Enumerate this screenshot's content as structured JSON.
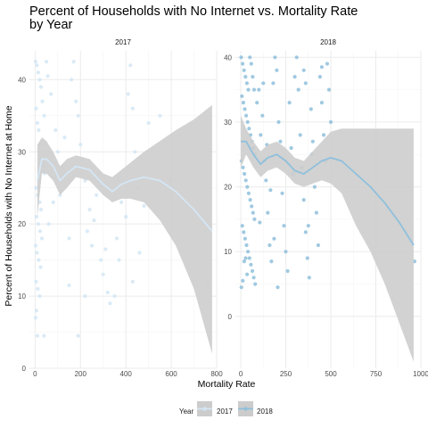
{
  "chart_data": {
    "type": "scatter",
    "title_lines": [
      "Percent of Households with No Internet vs. Mortality Rate",
      "by Year"
    ],
    "xlabel": "Mortality Rate",
    "ylabel": "Percent of Households with No Internet at Home",
    "legend": {
      "title": "Year",
      "entries": [
        "2017",
        "2018"
      ],
      "placement": "bottom"
    },
    "colors": {
      "2017": "#d4e6f5",
      "2018": "#8fc0dc",
      "band": "#cccccc",
      "grid": "#ebebeb"
    },
    "panels": [
      {
        "label": "2017",
        "xlim": [
          -25,
          800
        ],
        "ylim": [
          0,
          44
        ],
        "xticks": [
          0,
          200,
          400,
          600,
          800
        ],
        "yticks": [
          0,
          10,
          20,
          30,
          40
        ],
        "smooth": [
          [
            10,
            26,
            21,
            31
          ],
          [
            30,
            29,
            27,
            32
          ],
          [
            50,
            29,
            27,
            31.5
          ],
          [
            80,
            28,
            26,
            30
          ],
          [
            110,
            26,
            24,
            28
          ],
          [
            140,
            27,
            25,
            29
          ],
          [
            180,
            28,
            26.5,
            29.5
          ],
          [
            240,
            27.5,
            26,
            29
          ],
          [
            300,
            25.5,
            24,
            27
          ],
          [
            340,
            24.5,
            23,
            26.5
          ],
          [
            380,
            25.5,
            23.5,
            27.5
          ],
          [
            420,
            26,
            23.5,
            28.5
          ],
          [
            480,
            26.5,
            23,
            30
          ],
          [
            550,
            26,
            20.5,
            31.5
          ],
          [
            620,
            24.5,
            17,
            33
          ],
          [
            700,
            22,
            11,
            34.5
          ],
          [
            780,
            19,
            2,
            36.5
          ]
        ],
        "points": [
          [
            2,
            42.5
          ],
          [
            8,
            42
          ],
          [
            14,
            41
          ],
          [
            20,
            40
          ],
          [
            26,
            39
          ],
          [
            32,
            37
          ],
          [
            40,
            35
          ],
          [
            50,
            42.5
          ],
          [
            56,
            40.5
          ],
          [
            70,
            38
          ],
          [
            4,
            36
          ],
          [
            10,
            34
          ],
          [
            16,
            33
          ],
          [
            22,
            31
          ],
          [
            28,
            29
          ],
          [
            34,
            28
          ],
          [
            42,
            27
          ],
          [
            4,
            25
          ],
          [
            12,
            24
          ],
          [
            20,
            23
          ],
          [
            26,
            22
          ],
          [
            6,
            21
          ],
          [
            14,
            20
          ],
          [
            22,
            19
          ],
          [
            30,
            18
          ],
          [
            2,
            17
          ],
          [
            8,
            16
          ],
          [
            16,
            15
          ],
          [
            24,
            14
          ],
          [
            4,
            12
          ],
          [
            12,
            11
          ],
          [
            20,
            10
          ],
          [
            6,
            8
          ],
          [
            2,
            7
          ],
          [
            10,
            4.5
          ],
          [
            40,
            4.5
          ],
          [
            90,
            33
          ],
          [
            100,
            30
          ],
          [
            120,
            28
          ],
          [
            130,
            32
          ],
          [
            150,
            18
          ],
          [
            160,
            40
          ],
          [
            170,
            42.5
          ],
          [
            180,
            37
          ],
          [
            190,
            35
          ],
          [
            200,
            31
          ],
          [
            210,
            29
          ],
          [
            220,
            26
          ],
          [
            230,
            19
          ],
          [
            240,
            22
          ],
          [
            250,
            17
          ],
          [
            260,
            20.5
          ],
          [
            270,
            24
          ],
          [
            280,
            27
          ],
          [
            290,
            15
          ],
          [
            300,
            13
          ],
          [
            320,
            10.5
          ],
          [
            330,
            9
          ],
          [
            350,
            10
          ],
          [
            360,
            18
          ],
          [
            380,
            23
          ],
          [
            400,
            21
          ],
          [
            410,
            38
          ],
          [
            420,
            42
          ],
          [
            430,
            36
          ],
          [
            440,
            30
          ],
          [
            450,
            25
          ],
          [
            460,
            16
          ],
          [
            480,
            22.5
          ],
          [
            500,
            34
          ],
          [
            150,
            11.5
          ],
          [
            220,
            10
          ],
          [
            190,
            4.5
          ],
          [
            760,
            11.5
          ],
          [
            600,
            26
          ],
          [
            550,
            35
          ],
          [
            430,
            12
          ],
          [
            370,
            15
          ],
          [
            310,
            16.5
          ],
          [
            80,
            23
          ],
          [
            60,
            20
          ],
          [
            110,
            24
          ]
        ]
      },
      {
        "label": "2018",
        "xlim": [
          -30,
          1000
        ],
        "ylim": [
          -8,
          41
        ],
        "xticks": [
          0,
          250,
          500,
          750,
          1000
        ],
        "yticks": [
          0,
          10,
          20,
          30,
          40
        ],
        "smooth": [
          [
            0,
            27,
            23,
            31
          ],
          [
            30,
            27,
            25,
            29
          ],
          [
            70,
            25,
            23,
            27
          ],
          [
            110,
            23.5,
            21.5,
            25.5
          ],
          [
            150,
            24.5,
            22.5,
            26.5
          ],
          [
            200,
            25,
            23,
            27
          ],
          [
            250,
            24,
            22,
            26
          ],
          [
            300,
            22.5,
            20.5,
            24.5
          ],
          [
            350,
            22,
            20,
            24
          ],
          [
            400,
            23,
            20.5,
            25.5
          ],
          [
            450,
            24,
            21,
            27
          ],
          [
            500,
            24.5,
            20.5,
            28.5
          ],
          [
            560,
            24,
            19,
            29
          ],
          [
            640,
            22,
            14,
            29
          ],
          [
            720,
            20,
            10,
            29
          ],
          [
            800,
            17.5,
            5,
            29
          ],
          [
            880,
            14.5,
            -1,
            29
          ],
          [
            960,
            11,
            -7,
            29
          ]
        ],
        "points": [
          [
            2,
            40
          ],
          [
            10,
            39
          ],
          [
            18,
            38
          ],
          [
            26,
            37
          ],
          [
            34,
            36
          ],
          [
            42,
            35
          ],
          [
            50,
            40
          ],
          [
            58,
            39
          ],
          [
            66,
            37
          ],
          [
            74,
            35
          ],
          [
            6,
            34
          ],
          [
            14,
            33
          ],
          [
            22,
            32
          ],
          [
            30,
            31
          ],
          [
            38,
            30
          ],
          [
            46,
            29
          ],
          [
            54,
            28
          ],
          [
            62,
            27
          ],
          [
            70,
            26
          ],
          [
            78,
            25
          ],
          [
            4,
            24
          ],
          [
            12,
            23
          ],
          [
            20,
            22
          ],
          [
            28,
            21
          ],
          [
            36,
            20
          ],
          [
            44,
            19
          ],
          [
            52,
            18
          ],
          [
            60,
            17
          ],
          [
            68,
            16
          ],
          [
            76,
            15
          ],
          [
            8,
            14
          ],
          [
            16,
            13
          ],
          [
            24,
            12
          ],
          [
            32,
            11
          ],
          [
            40,
            10
          ],
          [
            48,
            9
          ],
          [
            56,
            8
          ],
          [
            64,
            7
          ],
          [
            72,
            6
          ],
          [
            80,
            5
          ],
          [
            3,
            4.5
          ],
          [
            11,
            5.5
          ],
          [
            19,
            8.5
          ],
          [
            27,
            9
          ],
          [
            35,
            6.5
          ],
          [
            90,
            33
          ],
          [
            100,
            35
          ],
          [
            110,
            28
          ],
          [
            120,
            31
          ],
          [
            130,
            24
          ],
          [
            140,
            21
          ],
          [
            150,
            16
          ],
          [
            160,
            11
          ],
          [
            170,
            8.5
          ],
          [
            180,
            36
          ],
          [
            190,
            40
          ],
          [
            200,
            38
          ],
          [
            210,
            30
          ],
          [
            220,
            27
          ],
          [
            230,
            19
          ],
          [
            240,
            14
          ],
          [
            250,
            10
          ],
          [
            260,
            7
          ],
          [
            270,
            33
          ],
          [
            280,
            26
          ],
          [
            290,
            22
          ],
          [
            300,
            37
          ],
          [
            310,
            40
          ],
          [
            320,
            35
          ],
          [
            330,
            28
          ],
          [
            340,
            23
          ],
          [
            350,
            18
          ],
          [
            360,
            13
          ],
          [
            370,
            9
          ],
          [
            380,
            6
          ],
          [
            390,
            32
          ],
          [
            400,
            27
          ],
          [
            410,
            20
          ],
          [
            420,
            16
          ],
          [
            430,
            11
          ],
          [
            440,
            37
          ],
          [
            450,
            33
          ],
          [
            460,
            28
          ],
          [
            470,
            24
          ],
          [
            480,
            39
          ],
          [
            490,
            35
          ],
          [
            500,
            30
          ],
          [
            350,
            38
          ],
          [
            360,
            36
          ],
          [
            450,
            38.5
          ],
          [
            965,
            8.5
          ],
          [
            375,
            14
          ],
          [
            395,
            25
          ],
          [
            205,
            4.5
          ],
          [
            185,
            12
          ],
          [
            165,
            19.5
          ],
          [
            145,
            26.5
          ],
          [
            125,
            36
          ],
          [
            105,
            14.5
          ]
        ]
      }
    ]
  }
}
